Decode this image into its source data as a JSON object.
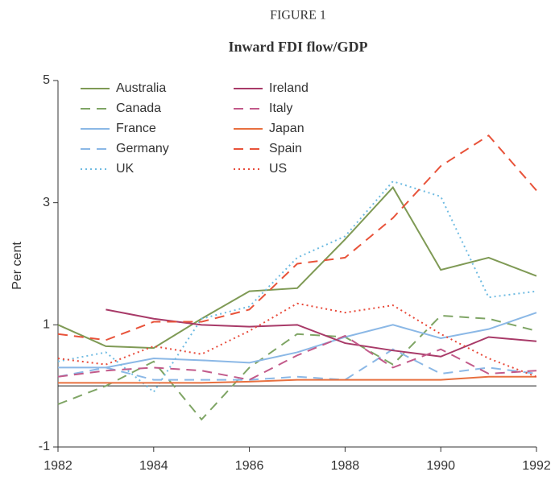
{
  "chart_data": {
    "type": "line",
    "header": "FIGURE 1",
    "title": "Inward FDI flow/GDP",
    "y_label": "Per cent",
    "x": [
      1982,
      1983,
      1984,
      1985,
      1986,
      1987,
      1988,
      1989,
      1990,
      1991,
      1992
    ],
    "xlim": [
      1982,
      1992
    ],
    "xticks": [
      1982,
      1984,
      1986,
      1988,
      1990,
      1992
    ],
    "ylim": [
      -1,
      5
    ],
    "yticks": [
      -1,
      1,
      3,
      5
    ],
    "legend": "top-left",
    "series": [
      {
        "name": "Australia",
        "color": "#7f9a55",
        "dash": "solid",
        "values": [
          1.0,
          0.65,
          0.62,
          1.1,
          1.55,
          1.6,
          2.4,
          3.25,
          1.9,
          2.1,
          1.8
        ]
      },
      {
        "name": "Canada",
        "color": "#7fa565",
        "dash": "dashed",
        "values": [
          -0.3,
          0.0,
          0.4,
          -0.55,
          0.3,
          0.85,
          0.8,
          0.35,
          1.15,
          1.1,
          0.9
        ]
      },
      {
        "name": "France",
        "color": "#8bb8e6",
        "dash": "solid",
        "values": [
          0.3,
          0.3,
          0.45,
          0.42,
          0.38,
          0.55,
          0.8,
          1.0,
          0.78,
          0.93,
          1.2
        ]
      },
      {
        "name": "Germany",
        "color": "#8bb8e6",
        "dash": "dashed",
        "values": [
          0.15,
          0.3,
          0.1,
          0.1,
          0.1,
          0.15,
          0.1,
          0.6,
          0.2,
          0.3,
          0.2
        ]
      },
      {
        "name": "UK",
        "color": "#6fbbe2",
        "dash": "dotted",
        "values": [
          0.4,
          0.55,
          -0.1,
          1.1,
          1.3,
          2.1,
          2.45,
          3.35,
          3.1,
          1.45,
          1.55
        ]
      },
      {
        "name": "Ireland",
        "color": "#a83a68",
        "dash": "solid",
        "values": [
          null,
          1.25,
          1.1,
          1.0,
          0.97,
          1.0,
          0.7,
          0.58,
          0.48,
          0.8,
          0.73
        ]
      },
      {
        "name": "Italy",
        "color": "#c25a8a",
        "dash": "dashed",
        "values": [
          0.15,
          0.25,
          0.3,
          0.25,
          0.1,
          0.5,
          0.82,
          0.3,
          0.6,
          0.2,
          0.25
        ]
      },
      {
        "name": "Japan",
        "color": "#e8703f",
        "dash": "solid",
        "values": [
          0.05,
          0.05,
          0.05,
          0.05,
          0.07,
          0.1,
          0.1,
          0.1,
          0.1,
          0.15,
          0.15
        ]
      },
      {
        "name": "Spain",
        "color": "#e8533a",
        "dash": "dashed",
        "values": [
          0.85,
          0.75,
          1.05,
          1.05,
          1.25,
          2.0,
          2.1,
          2.75,
          3.6,
          4.1,
          3.2
        ]
      },
      {
        "name": "US",
        "color": "#e84a3a",
        "dash": "dotted",
        "values": [
          0.45,
          0.35,
          0.65,
          0.52,
          0.9,
          1.35,
          1.2,
          1.32,
          0.85,
          0.45,
          0.15
        ]
      }
    ]
  }
}
